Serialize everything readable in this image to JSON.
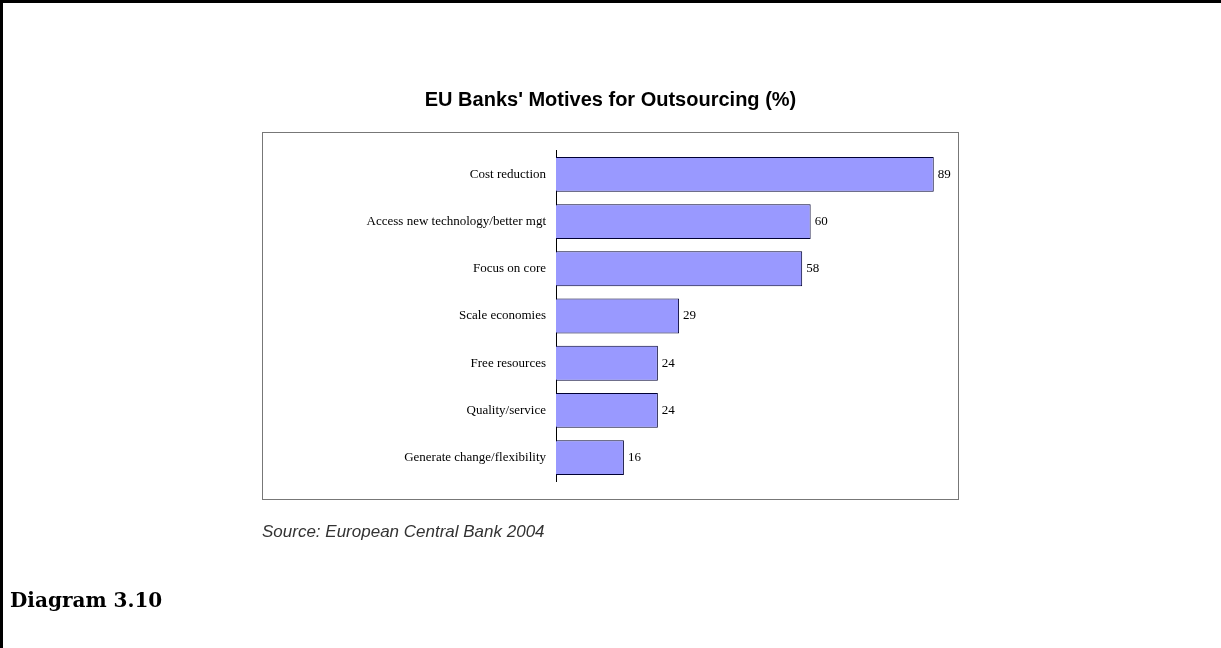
{
  "chart_data": {
    "type": "bar",
    "orientation": "horizontal",
    "title": "EU Banks' Motives for Outsourcing (%)",
    "categories": [
      "Cost reduction",
      "Access new technology/better mgt",
      "Focus on core",
      "Scale economies",
      "Free resources",
      "Quality/service",
      "Generate change/flexibility"
    ],
    "values": [
      89,
      60,
      58,
      29,
      24,
      24,
      16
    ],
    "color": "#9999ff",
    "data_labels": true,
    "grid": false,
    "legend": false,
    "annotations": [
      "Source: European Central Bank 2004",
      "Diagram 3.10"
    ]
  }
}
